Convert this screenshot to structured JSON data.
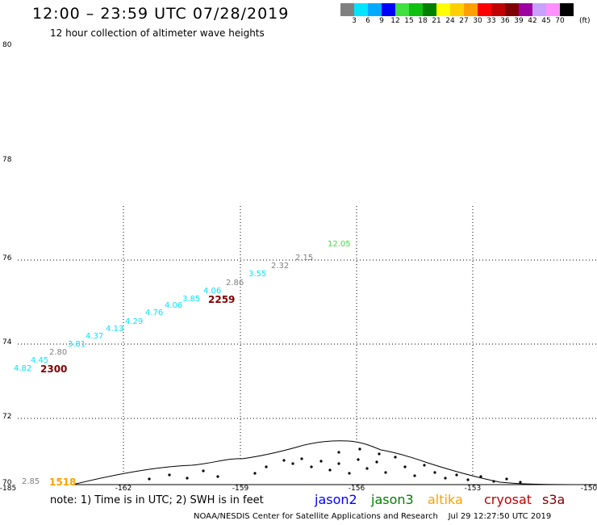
{
  "header": {
    "title": "12:00 – 23:59 UTC 07/28/2019",
    "subtitle": "12 hour collection of altimeter wave heights"
  },
  "colorbar": {
    "colors": [
      "#808080",
      "#00e5ff",
      "#00aaff",
      "#0000ff",
      "#40e040",
      "#10c010",
      "#008000",
      "#ffff00",
      "#ffd000",
      "#ffa000",
      "#ff0000",
      "#c00000",
      "#800000",
      "#a000a0",
      "#c8a0ff",
      "#ff90ff",
      "#000000"
    ],
    "labels": [
      "3",
      "6",
      "9",
      "12",
      "15",
      "18",
      "21",
      "24",
      "27",
      "30",
      "33",
      "36",
      "39",
      "42",
      "45",
      "70"
    ],
    "unit": "(ft)"
  },
  "axes": {
    "lat_labels": [
      "80",
      "78",
      "76",
      "74",
      "72",
      "70"
    ],
    "lon_labels": [
      "-185",
      "-162",
      "-159",
      "-156",
      "-153",
      "-150"
    ]
  },
  "tracks": [
    {
      "text": "12.05",
      "color": "#40e040"
    },
    {
      "text": "2.15",
      "color": "#808080"
    },
    {
      "text": "2.32",
      "color": "#808080"
    },
    {
      "text": "3.55",
      "color": "#00e5ff"
    },
    {
      "text": "2.86",
      "color": "#808080"
    },
    {
      "text": "4.06",
      "color": "#00e5ff"
    },
    {
      "text": "3.85",
      "color": "#00e5ff"
    },
    {
      "text": "4.06",
      "color": "#00e5ff"
    },
    {
      "text": "4.76",
      "color": "#00e5ff"
    },
    {
      "text": "4.29",
      "color": "#00e5ff"
    },
    {
      "text": "4.13",
      "color": "#00e5ff"
    },
    {
      "text": "4.37",
      "color": "#00e5ff"
    },
    {
      "text": "3.81",
      "color": "#00e5ff"
    },
    {
      "text": "2.80",
      "color": "#808080"
    },
    {
      "text": "4.45",
      "color": "#00e5ff"
    },
    {
      "text": "4.82",
      "color": "#00e5ff"
    },
    {
      "text": "2.85",
      "color": "#808080"
    }
  ],
  "times": [
    {
      "text": "2259",
      "color": "#800000"
    },
    {
      "text": "2300",
      "color": "#800000"
    },
    {
      "text": "1518",
      "color": "#ffa000"
    }
  ],
  "footer": {
    "note": "note: 1) Time is in UTC; 2) SWH is in feet",
    "satellites": [
      {
        "name": "jason2",
        "color": "#0000ff"
      },
      {
        "name": "jason3",
        "color": "#008000"
      },
      {
        "name": "altika",
        "color": "#ffa000"
      },
      {
        "name": "cryosat",
        "color": "#c00000"
      },
      {
        "name": "s3a",
        "color": "#800000"
      }
    ],
    "credit": "NOAA/NESDIS Center for Satellite Applications and Research",
    "timestamp": "Jul 29 12:27:50 UTC 2019"
  }
}
